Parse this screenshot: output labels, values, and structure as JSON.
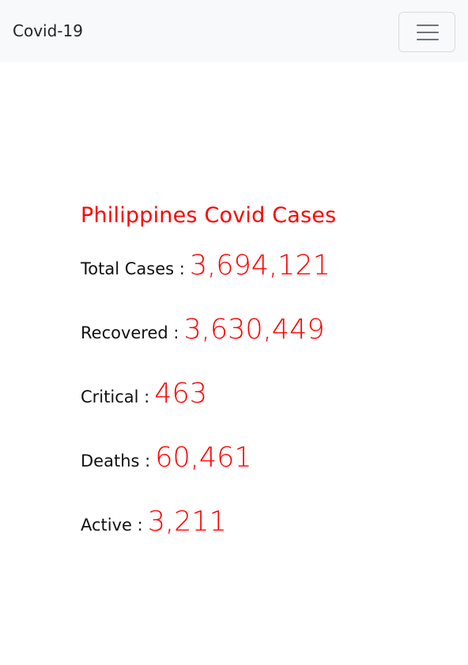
{
  "navbar": {
    "brand": "Covid-19",
    "toggler_icon": "hamburger-menu-icon"
  },
  "main": {
    "heading": "Philippines Covid Cases",
    "stats": [
      {
        "label": "Total Cases :",
        "value": "3,694,121"
      },
      {
        "label": "Recovered :",
        "value": "3,630,449"
      },
      {
        "label": "Critical :",
        "value": "463"
      },
      {
        "label": "Deaths :",
        "value": "60,461"
      },
      {
        "label": "Active :",
        "value": "3,211"
      }
    ]
  },
  "colors": {
    "accent": "#ff0000",
    "navbar_bg": "#f8f9fa",
    "text": "#111111"
  }
}
